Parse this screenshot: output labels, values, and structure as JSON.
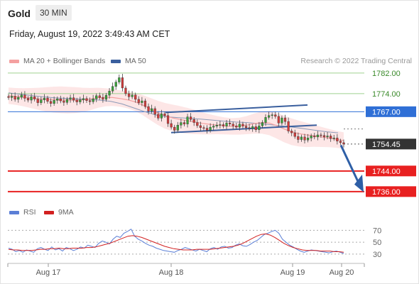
{
  "header": {
    "title": "Gold",
    "timeframe": "30 MIN",
    "datetime": "Friday, August 19, 2022 3:49:43 AM CET"
  },
  "legend": {
    "ma20_label": "MA 20 + Bollinger Bands",
    "ma50_label": "MA 50",
    "copyright": "Research © 2022 Trading Central",
    "rsi_label": "RSI",
    "rsi_ma_label": "9MA"
  },
  "colors": {
    "ma20": "#f4a0a0",
    "ma50": "#3a5f9e",
    "bands_fill": "#fde2e2",
    "resistance": "#9fd28f",
    "pivot": "#2f6fd6",
    "support": "#e82020",
    "last_price": "#333333",
    "candle_up": "#3aa13a",
    "candle_down": "#d23c3c",
    "arrow": "#2e5fa6",
    "channel": "#3a5f9e",
    "rsi": "#5b7fd6",
    "rsi_ma": "#d22020"
  },
  "chart_data": [
    {
      "type": "candlestick",
      "x_ticks": [
        "Aug 17",
        "Aug 18",
        "Aug 19",
        "Aug 20"
      ],
      "ylim": [
        1731,
        1785
      ],
      "price_levels": [
        {
          "value": 1782.0,
          "label": "1782.00",
          "kind": "resistance"
        },
        {
          "value": 1774.0,
          "label": "1774.00",
          "kind": "resistance"
        },
        {
          "value": 1767.0,
          "label": "1767.00",
          "kind": "pivot"
        },
        {
          "value": 1754.45,
          "label": "1754.45",
          "kind": "last"
        },
        {
          "value": 1744.0,
          "label": "1744.00",
          "kind": "support"
        },
        {
          "value": 1736.0,
          "label": "1736.00",
          "kind": "support"
        }
      ],
      "close": [
        1772.5,
        1773.0,
        1771.8,
        1772.6,
        1773.5,
        1772.2,
        1771.5,
        1772.8,
        1771.9,
        1770.5,
        1771.6,
        1772.3,
        1771.0,
        1770.2,
        1771.4,
        1772.0,
        1771.2,
        1770.6,
        1771.8,
        1772.4,
        1771.5,
        1770.8,
        1771.6,
        1772.1,
        1771.3,
        1770.9,
        1772.0,
        1773.2,
        1772.5,
        1771.8,
        1773.4,
        1775.0,
        1776.8,
        1778.5,
        1780.2,
        1776.2,
        1774.0,
        1772.8,
        1773.5,
        1771.8,
        1770.5,
        1771.2,
        1769.0,
        1767.2,
        1768.2,
        1766.0,
        1764.5,
        1766.2,
        1765.5,
        1762.4,
        1761.0,
        1759.8,
        1761.8,
        1762.8,
        1762.2,
        1765.0,
        1764.0,
        1762.8,
        1761.6,
        1760.8,
        1760.6,
        1759.8,
        1761.0,
        1761.4,
        1761.8,
        1762.0,
        1761.4,
        1762.6,
        1762.2,
        1761.5,
        1761.0,
        1762.2,
        1761.4,
        1760.8,
        1760.5,
        1761.2,
        1760.0,
        1761.5,
        1762.8,
        1764.8,
        1765.5,
        1765.8,
        1765.2,
        1762.6,
        1764.6,
        1763.2,
        1759.5,
        1758.8,
        1757.4,
        1756.2,
        1757.2,
        1756.0,
        1756.8,
        1757.6,
        1757.2,
        1758.0,
        1757.8,
        1757.2,
        1757.6,
        1756.6,
        1756.8,
        1755.6,
        1755.0,
        1754.45
      ],
      "ma20": [
        1773.2,
        1772.9,
        1772.6,
        1772.3,
        1772.0,
        1771.8,
        1771.7,
        1771.6,
        1771.5,
        1771.5,
        1771.6,
        1771.9,
        1772.4,
        1772.6,
        1772.5,
        1772.1,
        1771.6,
        1770.8,
        1769.6,
        1768.1,
        1766.6,
        1765.4,
        1764.6,
        1764.0,
        1763.5,
        1763.0,
        1762.5,
        1762.1,
        1761.8,
        1761.5,
        1761.3,
        1761.4,
        1761.8,
        1762.4,
        1762.8,
        1762.6,
        1761.6,
        1760.3,
        1759.2,
        1758.5,
        1758.0,
        1757.7,
        1757.2,
        1756.8,
        1756.3,
        1755.8
      ],
      "ma50": [
        1774.3,
        1773.8,
        1773.3,
        1772.8,
        1772.4,
        1772.2,
        1772.0,
        1771.8,
        1771.5,
        1771.0,
        1770.0,
        1768.5,
        1767.0,
        1765.7,
        1765.0,
        1764.7,
        1764.4,
        1764.1,
        1763.7,
        1763.3,
        1763.0,
        1762.8,
        1762.4,
        1762.0,
        1761.5,
        1761.0,
        1760.4,
        1759.8,
        1759.2,
        1758.8
      ]
    },
    {
      "type": "line",
      "name": "RSI",
      "yticks": [
        30,
        50,
        70
      ],
      "ylim": [
        25,
        80
      ],
      "rsi": [
        40,
        38,
        34,
        36,
        33,
        37,
        35,
        33,
        39,
        41,
        38,
        36,
        42,
        37,
        39,
        35,
        41,
        39,
        36,
        38,
        42,
        40,
        45,
        43,
        41,
        48,
        52,
        50,
        47,
        55,
        60,
        58,
        65,
        68,
        72,
        60,
        55,
        52,
        48,
        45,
        43,
        40,
        38,
        36,
        35,
        34,
        33,
        36,
        38,
        41,
        39,
        37,
        35,
        38,
        36,
        34,
        39,
        41,
        38,
        42,
        43,
        40,
        41,
        45,
        47,
        44,
        43,
        46,
        50,
        53,
        58,
        63,
        65,
        68,
        70,
        65,
        55,
        50,
        45,
        42,
        38,
        35,
        33,
        35,
        37,
        36,
        35,
        34,
        33,
        32,
        34,
        35,
        33,
        31
      ],
      "rsi_ma": [
        38,
        37,
        37,
        36,
        36,
        36,
        37,
        38,
        38,
        39,
        39,
        40,
        39,
        39,
        40,
        40,
        40,
        41,
        41,
        42,
        44,
        46,
        48,
        51,
        54,
        57,
        60,
        61,
        60,
        58,
        55,
        52,
        49,
        46,
        43,
        41,
        39,
        38,
        37,
        37,
        37,
        38,
        38,
        38,
        38,
        39,
        40,
        41,
        42,
        43,
        45,
        48,
        52,
        56,
        60,
        63,
        64,
        62,
        58,
        53,
        48,
        44,
        41,
        39,
        37,
        36,
        36,
        36,
        35,
        35,
        35,
        34,
        34,
        33
      ]
    }
  ]
}
